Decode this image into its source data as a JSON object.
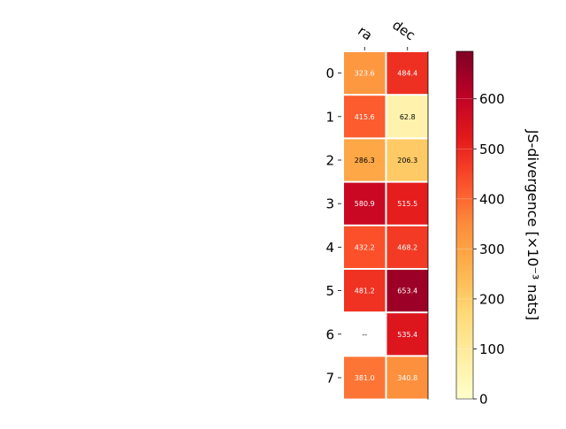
{
  "chart_data": {
    "type": "heatmap",
    "columns": [
      "ra",
      "dec"
    ],
    "rows": [
      "0",
      "1",
      "2",
      "3",
      "4",
      "5",
      "6",
      "7"
    ],
    "values": [
      [
        323.6,
        484.4
      ],
      [
        415.6,
        62.8
      ],
      [
        286.3,
        206.3
      ],
      [
        580.9,
        515.5
      ],
      [
        432.2,
        468.2
      ],
      [
        481.2,
        653.4
      ],
      [
        null,
        535.4
      ],
      [
        381.0,
        340.8
      ]
    ],
    "cell_labels": [
      [
        "323.6",
        "484.4"
      ],
      [
        "415.6",
        "62.8"
      ],
      [
        "286.3",
        "206.3"
      ],
      [
        "580.9",
        "515.5"
      ],
      [
        "432.2",
        "468.2"
      ],
      [
        "481.2",
        "653.4"
      ],
      [
        "--",
        "535.4"
      ],
      [
        "381.0",
        "340.8"
      ]
    ],
    "colormap": "YlOrRd",
    "vmin": 0,
    "vmax": 695,
    "colorbar": {
      "label": "JS-divergence [×10⁻³ nats]",
      "ticks": [
        0,
        100,
        200,
        300,
        400,
        500,
        600
      ],
      "tick_labels": [
        "0",
        "100",
        "200",
        "300",
        "400",
        "500",
        "600"
      ]
    }
  }
}
